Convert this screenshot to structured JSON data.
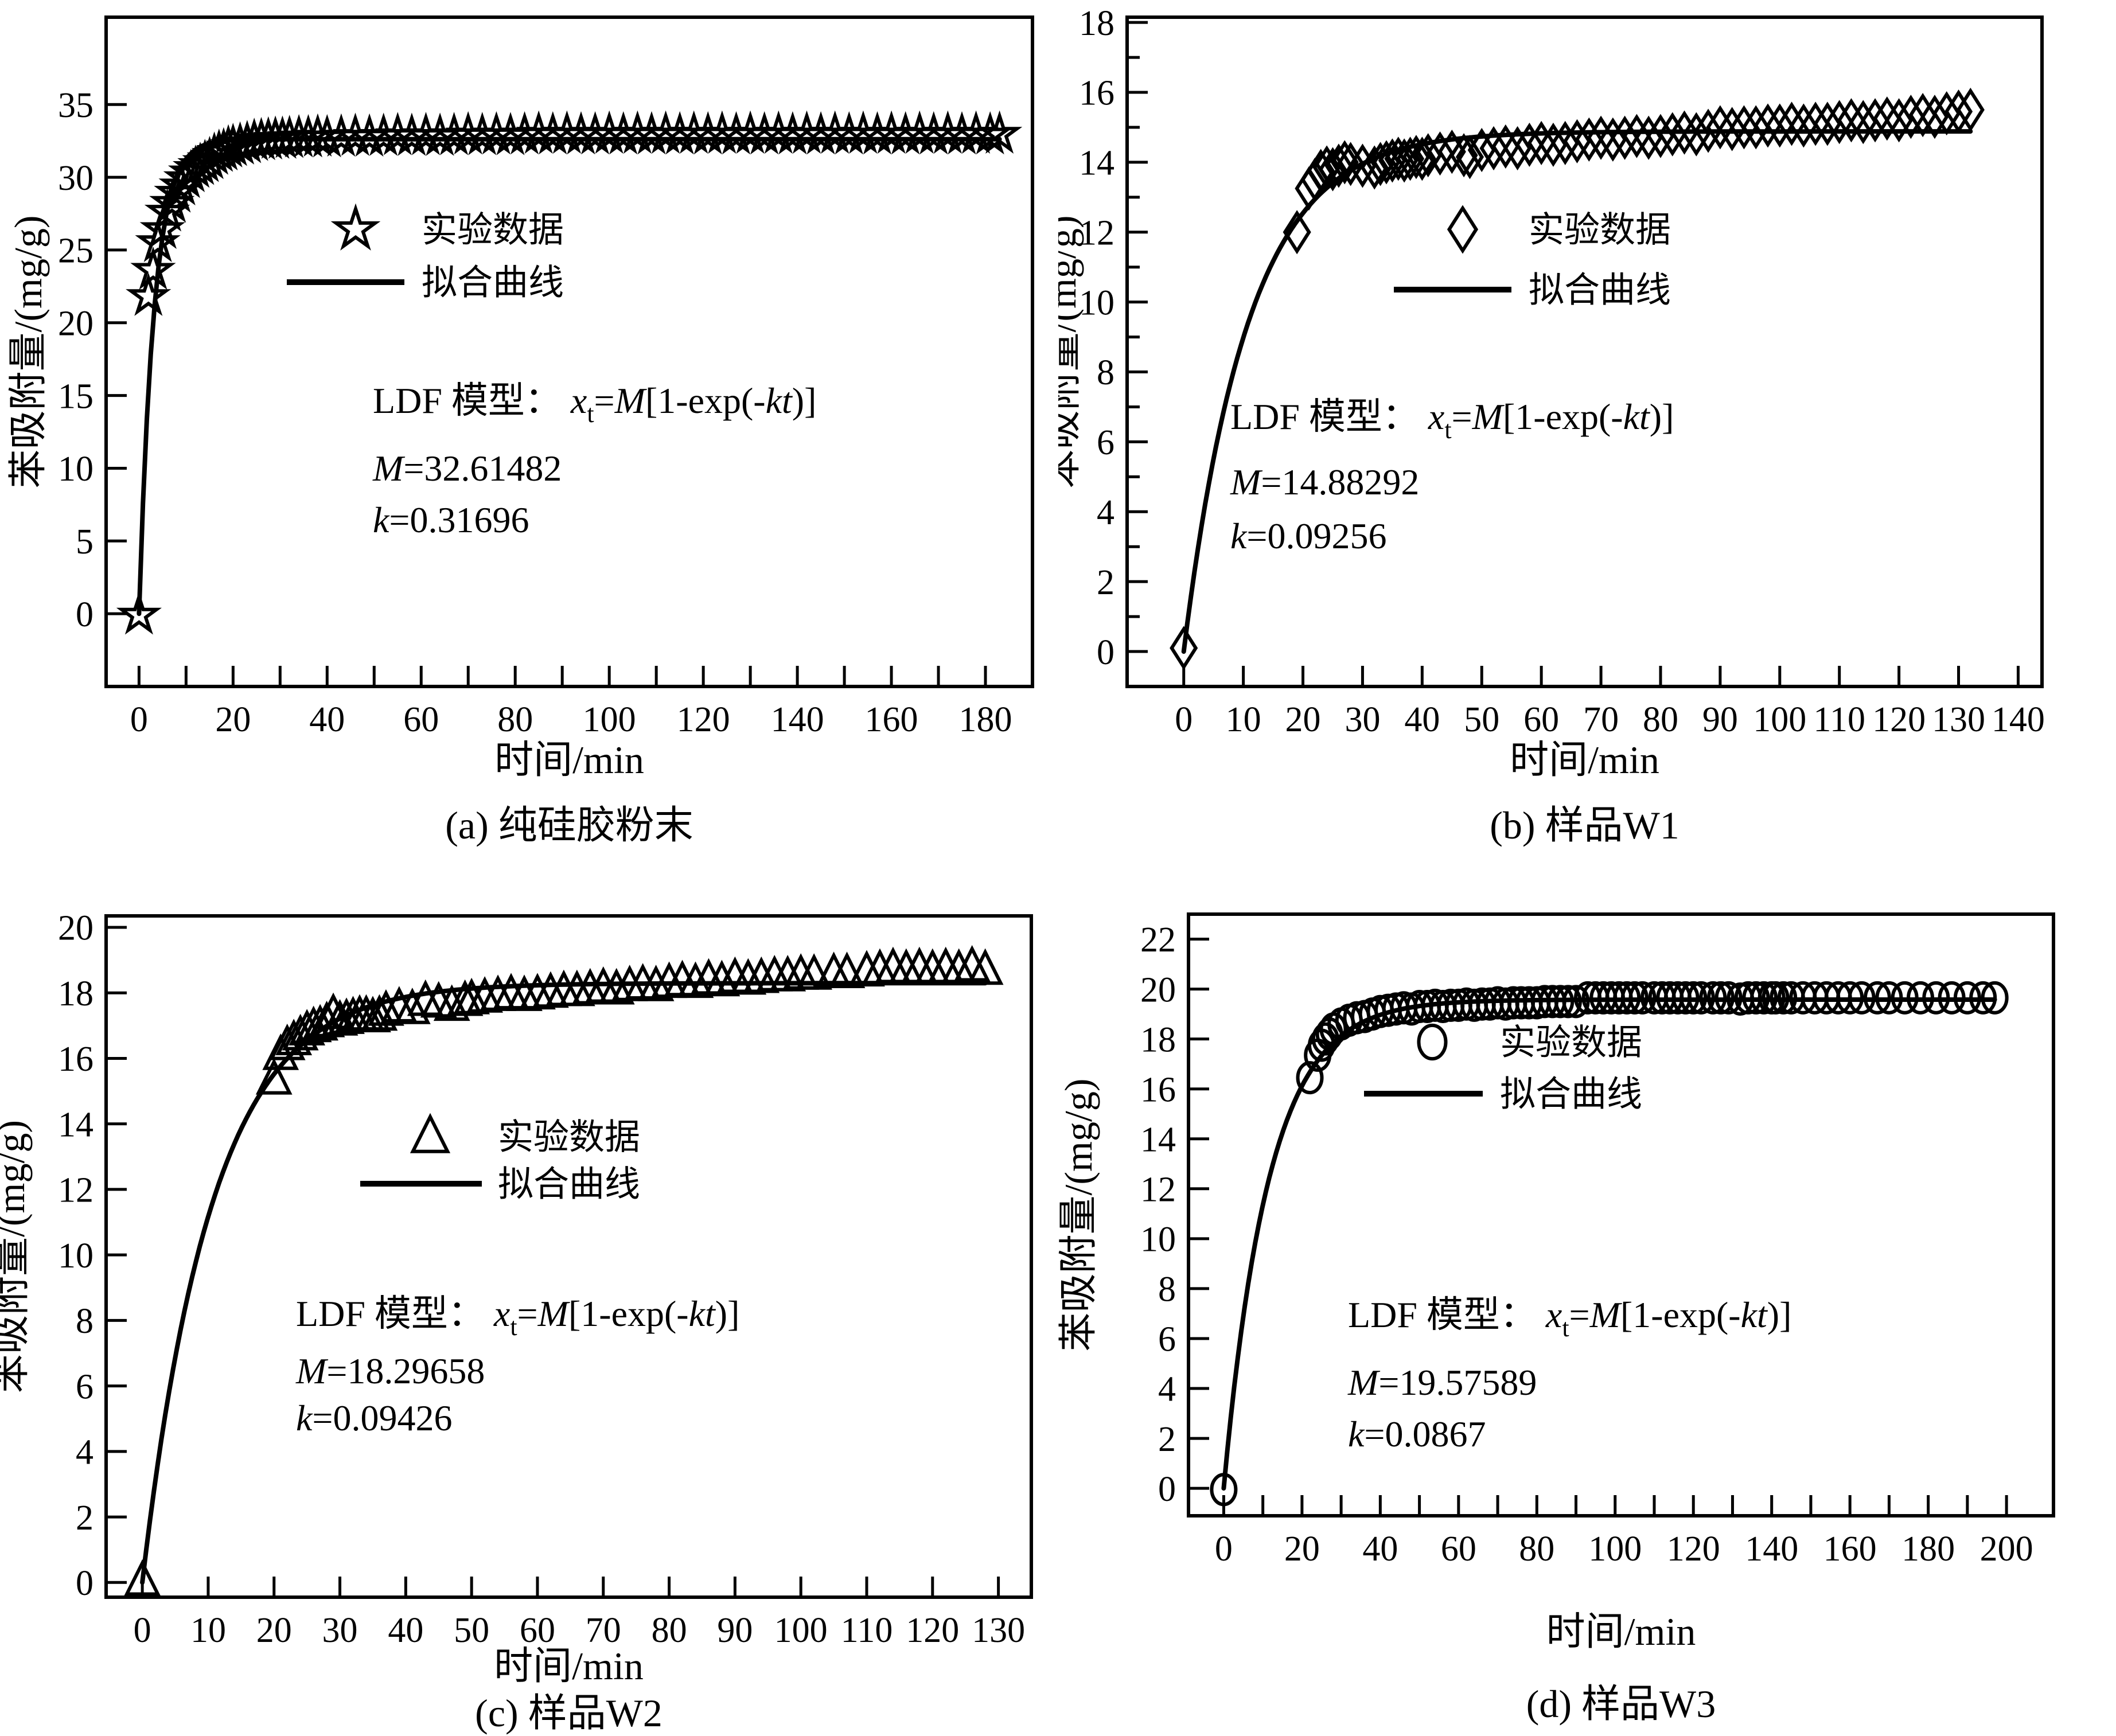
{
  "colors": {
    "ink": "#000000",
    "background": "#ffffff"
  },
  "figure": {
    "ylabel": "苯吸附量/(mg/g)",
    "xlabel": "时间/min",
    "legend": {
      "data_label": "实验数据",
      "fit_label": "拟合曲线"
    },
    "formula": {
      "prefix": "LDF 模型： ",
      "x": "x",
      "sub": "t",
      "eq": "=",
      "M": "M",
      "open": "[1-exp(-",
      "kt": "kt",
      "close": ")]"
    }
  },
  "chart_data": [
    {
      "id": "a",
      "type": "scatter",
      "caption": "(a) 纯硅胶粉末",
      "xlabel": "时间/min",
      "ylabel": "苯吸附量/(mg/g)",
      "legend": [
        "实验数据",
        "拟合曲线"
      ],
      "marker": "star",
      "model": {
        "M": 32.61482,
        "k": 0.31696
      },
      "M_text": "32.61482",
      "k_text": "0.31696",
      "xlim": [
        -7,
        190
      ],
      "ylim": [
        -5,
        41
      ],
      "xticks": {
        "min": 0,
        "max": 180,
        "step": 10,
        "label_every": 2
      },
      "yticks": {
        "min": 0,
        "max": 35,
        "step": 5,
        "label_every": 1,
        "minor_step": 0
      },
      "points": [
        [
          0,
          -0.1
        ],
        [
          2,
          21.8
        ],
        [
          3,
          23.6
        ],
        [
          4,
          25.5
        ],
        [
          5,
          26.4
        ],
        [
          6,
          27.6
        ],
        [
          7,
          28.2
        ],
        [
          8,
          28.9
        ],
        [
          9,
          29.4
        ],
        [
          10,
          29.9
        ],
        [
          11,
          30.3
        ],
        [
          12,
          30.6
        ],
        [
          13,
          30.8
        ],
        [
          14,
          31.0
        ],
        [
          15,
          31.2
        ],
        [
          16,
          31.5
        ],
        [
          17,
          31.7
        ],
        [
          18,
          31.8
        ],
        [
          19,
          32.0
        ],
        [
          20,
          32.1
        ],
        [
          21.5,
          32.2
        ],
        [
          23,
          32.3
        ],
        [
          24.5,
          32.45
        ],
        [
          26,
          32.5
        ],
        [
          27.5,
          32.55
        ],
        [
          29,
          32.6
        ],
        [
          30.5,
          32.6
        ],
        [
          32,
          32.65
        ],
        [
          34,
          32.7
        ],
        [
          36,
          32.7
        ],
        [
          38,
          32.75
        ],
        [
          40,
          32.7
        ],
        [
          43,
          32.75
        ],
        [
          46,
          32.8
        ],
        [
          49,
          32.75
        ],
        [
          52,
          32.8
        ],
        [
          55,
          32.85
        ],
        [
          58,
          32.8
        ],
        [
          61,
          32.85
        ],
        [
          64,
          32.8
        ],
        [
          67,
          32.85
        ],
        [
          70,
          32.9
        ],
        [
          73,
          32.85
        ],
        [
          76,
          32.9
        ],
        [
          79,
          32.85
        ],
        [
          82,
          32.9
        ],
        [
          85,
          32.95
        ],
        [
          88,
          32.9
        ],
        [
          91,
          32.95
        ],
        [
          94,
          32.9
        ],
        [
          97,
          32.9
        ],
        [
          100,
          32.95
        ],
        [
          103,
          32.9
        ],
        [
          106,
          32.95
        ],
        [
          109,
          32.9
        ],
        [
          112,
          32.95
        ],
        [
          115,
          32.9
        ],
        [
          118,
          32.95
        ],
        [
          121,
          32.9
        ],
        [
          124,
          32.95
        ],
        [
          127,
          32.9
        ],
        [
          130,
          32.95
        ],
        [
          133,
          32.9
        ],
        [
          136,
          32.95
        ],
        [
          139,
          32.9
        ],
        [
          142,
          32.95
        ],
        [
          145,
          32.9
        ],
        [
          148,
          32.95
        ],
        [
          151,
          32.9
        ],
        [
          154,
          32.95
        ],
        [
          157,
          32.9
        ],
        [
          160,
          32.95
        ],
        [
          163,
          32.9
        ],
        [
          166,
          32.95
        ],
        [
          169,
          32.9
        ],
        [
          172,
          32.95
        ],
        [
          175,
          32.9
        ],
        [
          178,
          32.95
        ],
        [
          181,
          32.9
        ],
        [
          183,
          32.95
        ]
      ]
    },
    {
      "id": "b",
      "type": "scatter",
      "caption": "(b) 样品W1",
      "xlabel": "时间/min",
      "ylabel": "苯吸附量/(mg/g)",
      "legend": [
        "实验数据",
        "拟合曲线"
      ],
      "marker": "diamond",
      "model": {
        "M": 14.88292,
        "k": 0.09256
      },
      "M_text": "14.88292",
      "k_text": "0.09256",
      "xlim": [
        -9.5,
        144
      ],
      "ylim": [
        -1,
        18.15
      ],
      "xticks": {
        "min": 0,
        "max": 140,
        "step": 10,
        "label_every": 1
      },
      "yticks": {
        "min": 0,
        "max": 18,
        "step": 2,
        "label_every": 1,
        "minor_step": 1
      },
      "points": [
        [
          0,
          0.1
        ],
        [
          19,
          12.0
        ],
        [
          21,
          13.25
        ],
        [
          22,
          13.5
        ],
        [
          23,
          13.75
        ],
        [
          24,
          13.85
        ],
        [
          25,
          13.8
        ],
        [
          26,
          13.9
        ],
        [
          27,
          14.0
        ],
        [
          28,
          13.95
        ],
        [
          30,
          13.9
        ],
        [
          32,
          13.85
        ],
        [
          33,
          13.95
        ],
        [
          34,
          14.0
        ],
        [
          35,
          14.05
        ],
        [
          36,
          14.1
        ],
        [
          37,
          14.05
        ],
        [
          38,
          14.1
        ],
        [
          39,
          14.15
        ],
        [
          40,
          14.1
        ],
        [
          41,
          14.2
        ],
        [
          43,
          14.25
        ],
        [
          45,
          14.3
        ],
        [
          47,
          14.2
        ],
        [
          48,
          14.15
        ],
        [
          50,
          14.35
        ],
        [
          52,
          14.4
        ],
        [
          54,
          14.45
        ],
        [
          56,
          14.4
        ],
        [
          58,
          14.5
        ],
        [
          60,
          14.55
        ],
        [
          62,
          14.5
        ],
        [
          64,
          14.55
        ],
        [
          66,
          14.6
        ],
        [
          68,
          14.65
        ],
        [
          70,
          14.7
        ],
        [
          72,
          14.65
        ],
        [
          74,
          14.7
        ],
        [
          76,
          14.75
        ],
        [
          78,
          14.7
        ],
        [
          80,
          14.75
        ],
        [
          82,
          14.8
        ],
        [
          84,
          14.85
        ],
        [
          86,
          14.8
        ],
        [
          88,
          14.9
        ],
        [
          90,
          15.0
        ],
        [
          92,
          14.95
        ],
        [
          94,
          15.0
        ],
        [
          96,
          15.0
        ],
        [
          98,
          15.05
        ],
        [
          100,
          15.05
        ],
        [
          102,
          15.1
        ],
        [
          104,
          15.05
        ],
        [
          106,
          15.1
        ],
        [
          108,
          15.1
        ],
        [
          110,
          15.15
        ],
        [
          112,
          15.2
        ],
        [
          114,
          15.15
        ],
        [
          116,
          15.2
        ],
        [
          118,
          15.25
        ],
        [
          120,
          15.2
        ],
        [
          122,
          15.3
        ],
        [
          124,
          15.35
        ],
        [
          126,
          15.3
        ],
        [
          128,
          15.4
        ],
        [
          130,
          15.45
        ],
        [
          132,
          15.5
        ]
      ]
    },
    {
      "id": "c",
      "type": "scatter",
      "caption": "(c) 样品W2",
      "xlabel": "时间/min",
      "ylabel": "苯吸附量/(mg/g)",
      "legend": [
        "实验数据",
        "拟合曲线"
      ],
      "marker": "triangle",
      "model": {
        "M": 18.29658,
        "k": 0.09426
      },
      "M_text": "18.29658",
      "k_text": "0.09426",
      "xlim": [
        -5.5,
        135
      ],
      "ylim": [
        -0.45,
        20.35
      ],
      "xticks": {
        "min": 0,
        "max": 130,
        "step": 10,
        "label_every": 1
      },
      "yticks": {
        "min": 0,
        "max": 20,
        "step": 2,
        "label_every": 1,
        "minor_step": 0
      },
      "points": [
        [
          0,
          0.05
        ],
        [
          20,
          15.35
        ],
        [
          21,
          16.1
        ],
        [
          22,
          16.4
        ],
        [
          23,
          16.55
        ],
        [
          24,
          16.7
        ],
        [
          25,
          16.85
        ],
        [
          26,
          16.95
        ],
        [
          27,
          17.0
        ],
        [
          28,
          17.1
        ],
        [
          29,
          17.35
        ],
        [
          30,
          17.15
        ],
        [
          31,
          17.2
        ],
        [
          32,
          17.25
        ],
        [
          33,
          17.3
        ],
        [
          34,
          17.3
        ],
        [
          35,
          17.25
        ],
        [
          36,
          17.3
        ],
        [
          37,
          17.45
        ],
        [
          39,
          17.55
        ],
        [
          41,
          17.5
        ],
        [
          43,
          17.75
        ],
        [
          45,
          17.7
        ],
        [
          47,
          17.6
        ],
        [
          49,
          17.75
        ],
        [
          50,
          17.8
        ],
        [
          52,
          17.85
        ],
        [
          54,
          17.9
        ],
        [
          56,
          17.95
        ],
        [
          58,
          17.9
        ],
        [
          60,
          17.95
        ],
        [
          62,
          18.0
        ],
        [
          64,
          18.05
        ],
        [
          66,
          18.05
        ],
        [
          68,
          18.1
        ],
        [
          70,
          18.15
        ],
        [
          72,
          18.1
        ],
        [
          74,
          18.2
        ],
        [
          76,
          18.25
        ],
        [
          78,
          18.2
        ],
        [
          80,
          18.3
        ],
        [
          82,
          18.35
        ],
        [
          84,
          18.3
        ],
        [
          86,
          18.4
        ],
        [
          88,
          18.35
        ],
        [
          90,
          18.45
        ],
        [
          92,
          18.4
        ],
        [
          94,
          18.45
        ],
        [
          96,
          18.5
        ],
        [
          98,
          18.5
        ],
        [
          100,
          18.55
        ],
        [
          102,
          18.55
        ],
        [
          105,
          18.6
        ],
        [
          107,
          18.6
        ],
        [
          110,
          18.65
        ],
        [
          112,
          18.7
        ],
        [
          114,
          18.75
        ],
        [
          116,
          18.7
        ],
        [
          118,
          18.75
        ],
        [
          120,
          18.7
        ],
        [
          122,
          18.75
        ],
        [
          124,
          18.7
        ],
        [
          126,
          18.8
        ],
        [
          128,
          18.7
        ]
      ]
    },
    {
      "id": "d",
      "type": "scatter",
      "caption": "(d) 样品W3",
      "xlabel": "时间/min",
      "ylabel": "苯吸附量/(mg/g)",
      "legend": [
        "实验数据",
        "拟合曲线"
      ],
      "marker": "circle",
      "model": {
        "M": 19.57589,
        "k": 0.0867
      },
      "M_text": "19.57589",
      "k_text": "0.0867",
      "xlim": [
        -9,
        212
      ],
      "ylim": [
        -1.1,
        23.0
      ],
      "xticks": {
        "min": 0,
        "max": 200,
        "step": 10,
        "label_every": 2
      },
      "yticks": {
        "min": 0,
        "max": 22,
        "step": 2,
        "label_every": 1,
        "minor_step": 0
      },
      "points": [
        [
          0,
          -0.05
        ],
        [
          22,
          16.45
        ],
        [
          24,
          17.35
        ],
        [
          25,
          17.75
        ],
        [
          26,
          18.0
        ],
        [
          27,
          18.2
        ],
        [
          28,
          18.4
        ],
        [
          30,
          18.6
        ],
        [
          32,
          18.75
        ],
        [
          34,
          18.85
        ],
        [
          36,
          18.9
        ],
        [
          38,
          19.0
        ],
        [
          40,
          19.1
        ],
        [
          42,
          19.15
        ],
        [
          44,
          19.2
        ],
        [
          46,
          19.25
        ],
        [
          48,
          19.2
        ],
        [
          50,
          19.3
        ],
        [
          52,
          19.3
        ],
        [
          54,
          19.35
        ],
        [
          56,
          19.3
        ],
        [
          58,
          19.35
        ],
        [
          60,
          19.35
        ],
        [
          62,
          19.4
        ],
        [
          64,
          19.35
        ],
        [
          66,
          19.4
        ],
        [
          68,
          19.4
        ],
        [
          70,
          19.45
        ],
        [
          72,
          19.4
        ],
        [
          74,
          19.45
        ],
        [
          76,
          19.45
        ],
        [
          78,
          19.45
        ],
        [
          80,
          19.45
        ],
        [
          82,
          19.5
        ],
        [
          84,
          19.5
        ],
        [
          86,
          19.5
        ],
        [
          88,
          19.5
        ],
        [
          90,
          19.5
        ],
        [
          93,
          19.65
        ],
        [
          95,
          19.65
        ],
        [
          97,
          19.65
        ],
        [
          99,
          19.65
        ],
        [
          101,
          19.65
        ],
        [
          103,
          19.65
        ],
        [
          105,
          19.65
        ],
        [
          107,
          19.65
        ],
        [
          110,
          19.65
        ],
        [
          112,
          19.65
        ],
        [
          114,
          19.65
        ],
        [
          116,
          19.65
        ],
        [
          118,
          19.65
        ],
        [
          120,
          19.65
        ],
        [
          122,
          19.65
        ],
        [
          125,
          19.65
        ],
        [
          127,
          19.65
        ],
        [
          129,
          19.65
        ],
        [
          132,
          19.6
        ],
        [
          134,
          19.65
        ],
        [
          136,
          19.65
        ],
        [
          138,
          19.65
        ],
        [
          140,
          19.65
        ],
        [
          141,
          19.65
        ],
        [
          143,
          19.65
        ],
        [
          145,
          19.65
        ],
        [
          148,
          19.65
        ],
        [
          151,
          19.65
        ],
        [
          154,
          19.65
        ],
        [
          157,
          19.65
        ],
        [
          160,
          19.65
        ],
        [
          163,
          19.65
        ],
        [
          167,
          19.65
        ],
        [
          170,
          19.65
        ],
        [
          174,
          19.65
        ],
        [
          178,
          19.65
        ],
        [
          182,
          19.65
        ],
        [
          186,
          19.65
        ],
        [
          190,
          19.65
        ],
        [
          194,
          19.65
        ],
        [
          197,
          19.65
        ]
      ]
    }
  ]
}
